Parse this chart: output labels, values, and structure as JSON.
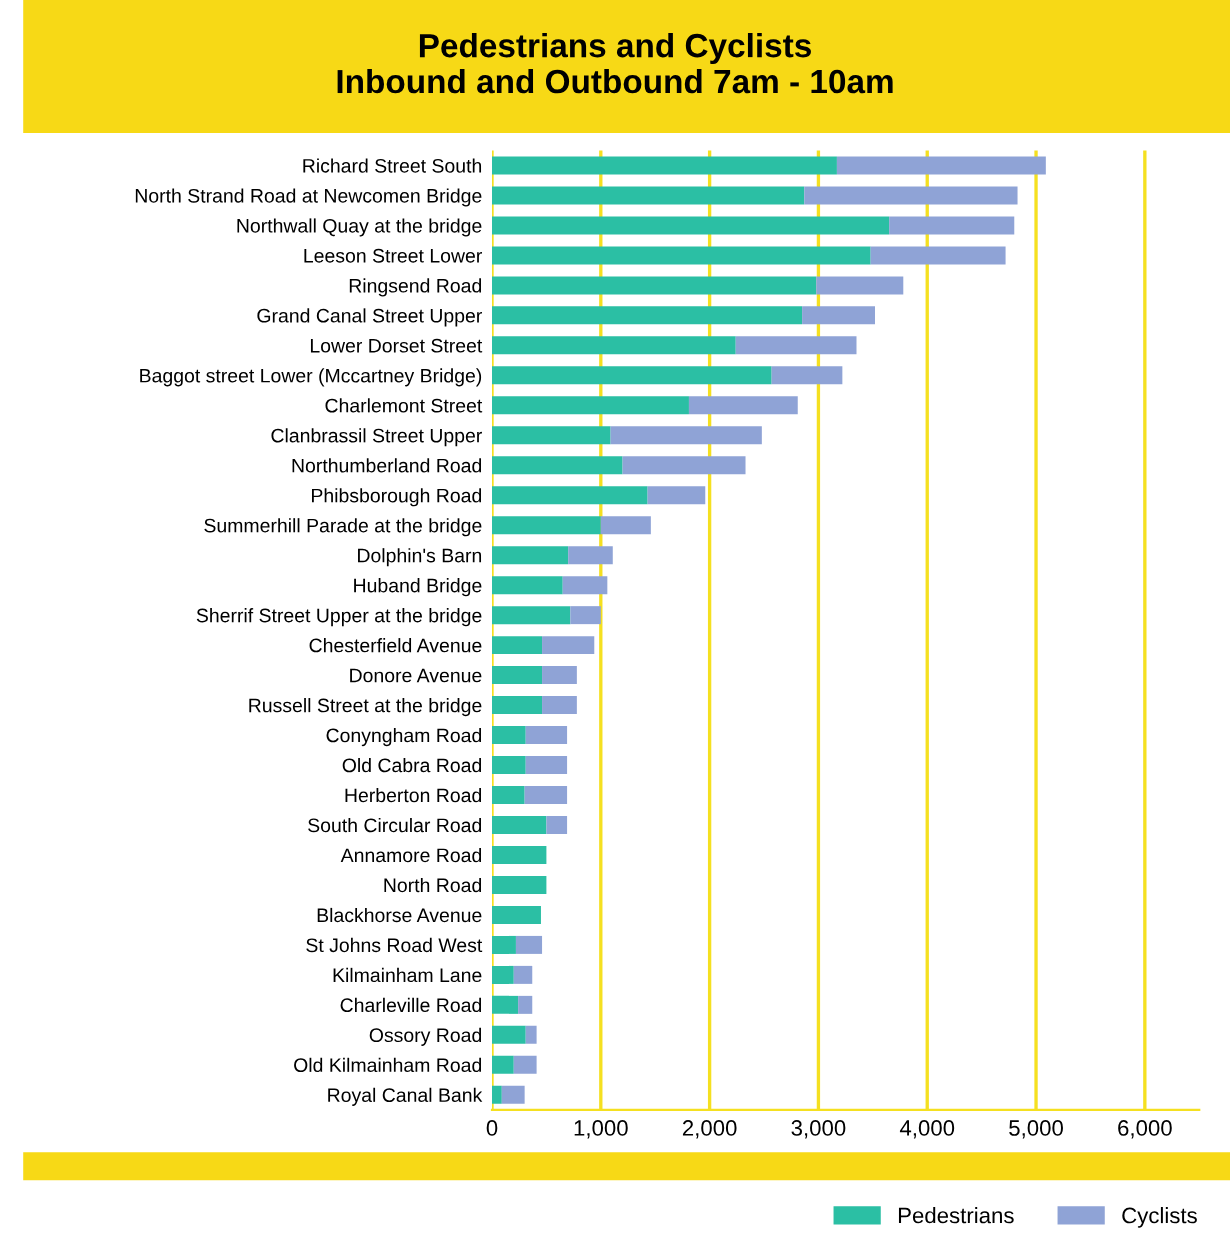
{
  "chart_data": {
    "type": "bar",
    "orientation": "horizontal",
    "stacked": true,
    "title": "Pedestrians and Cyclists\nInbound and Outbound 7am - 10am",
    "categories": [
      "Richard Street South",
      "North Strand Road at Newcomen Bridge",
      "Northwall Quay at the bridge",
      "Leeson Street Lower",
      "Ringsend Road",
      "Grand Canal Street Upper",
      "Lower Dorset Street",
      "Baggot street Lower (Mccartney Bridge)",
      "Charlemont Street",
      "Clanbrassil Street Upper",
      "Northumberland Road",
      "Phibsborough Road",
      "Summerhill Parade at the bridge",
      "Dolphin's Barn",
      "Huband Bridge",
      "Sherrif Street Upper at the bridge",
      "Chesterfield Avenue",
      "Donore Avenue",
      "Russell Street at the bridge",
      "Conyngham Road",
      "Old Cabra Road",
      "Herberton Road",
      "South Circular Road",
      "Annamore Road",
      "North Road",
      "Blackhorse Avenue",
      "St Johns Road West",
      "Kilmainham Lane",
      "Charleville Road",
      "Ossory Road",
      "Old Kilmainham Road",
      "Royal Canal Bank"
    ],
    "series": [
      {
        "name": "Pedestrians",
        "color": "#2bbfa4",
        "values": [
          3170,
          2870,
          3650,
          3480,
          2980,
          2850,
          2240,
          2570,
          1810,
          1090,
          1200,
          1430,
          1000,
          700,
          650,
          720,
          460,
          460,
          460,
          310,
          310,
          300,
          500,
          500,
          500,
          450,
          220,
          200,
          240,
          310,
          200,
          90
        ]
      },
      {
        "name": "Cyclists",
        "color": "#8fa3d6",
        "values": [
          1920,
          1960,
          1150,
          1240,
          800,
          670,
          1110,
          650,
          1000,
          1390,
          1130,
          530,
          460,
          410,
          410,
          280,
          480,
          320,
          320,
          380,
          380,
          390,
          190,
          0,
          0,
          0,
          240,
          170,
          130,
          100,
          210,
          210
        ]
      }
    ],
    "xlim": [
      0,
      6500
    ],
    "xticks": [
      0,
      {
        "value": 1000,
        "label": "1,000"
      },
      {
        "value": 2000,
        "label": "2,000"
      },
      {
        "value": 3000,
        "label": "3,000"
      },
      {
        "value": 4000,
        "label": "4,000"
      },
      {
        "value": 5000,
        "label": "5,000"
      },
      {
        "value": 6000,
        "label": "6,000"
      }
    ],
    "grid": "x",
    "legend": "bottom right"
  }
}
